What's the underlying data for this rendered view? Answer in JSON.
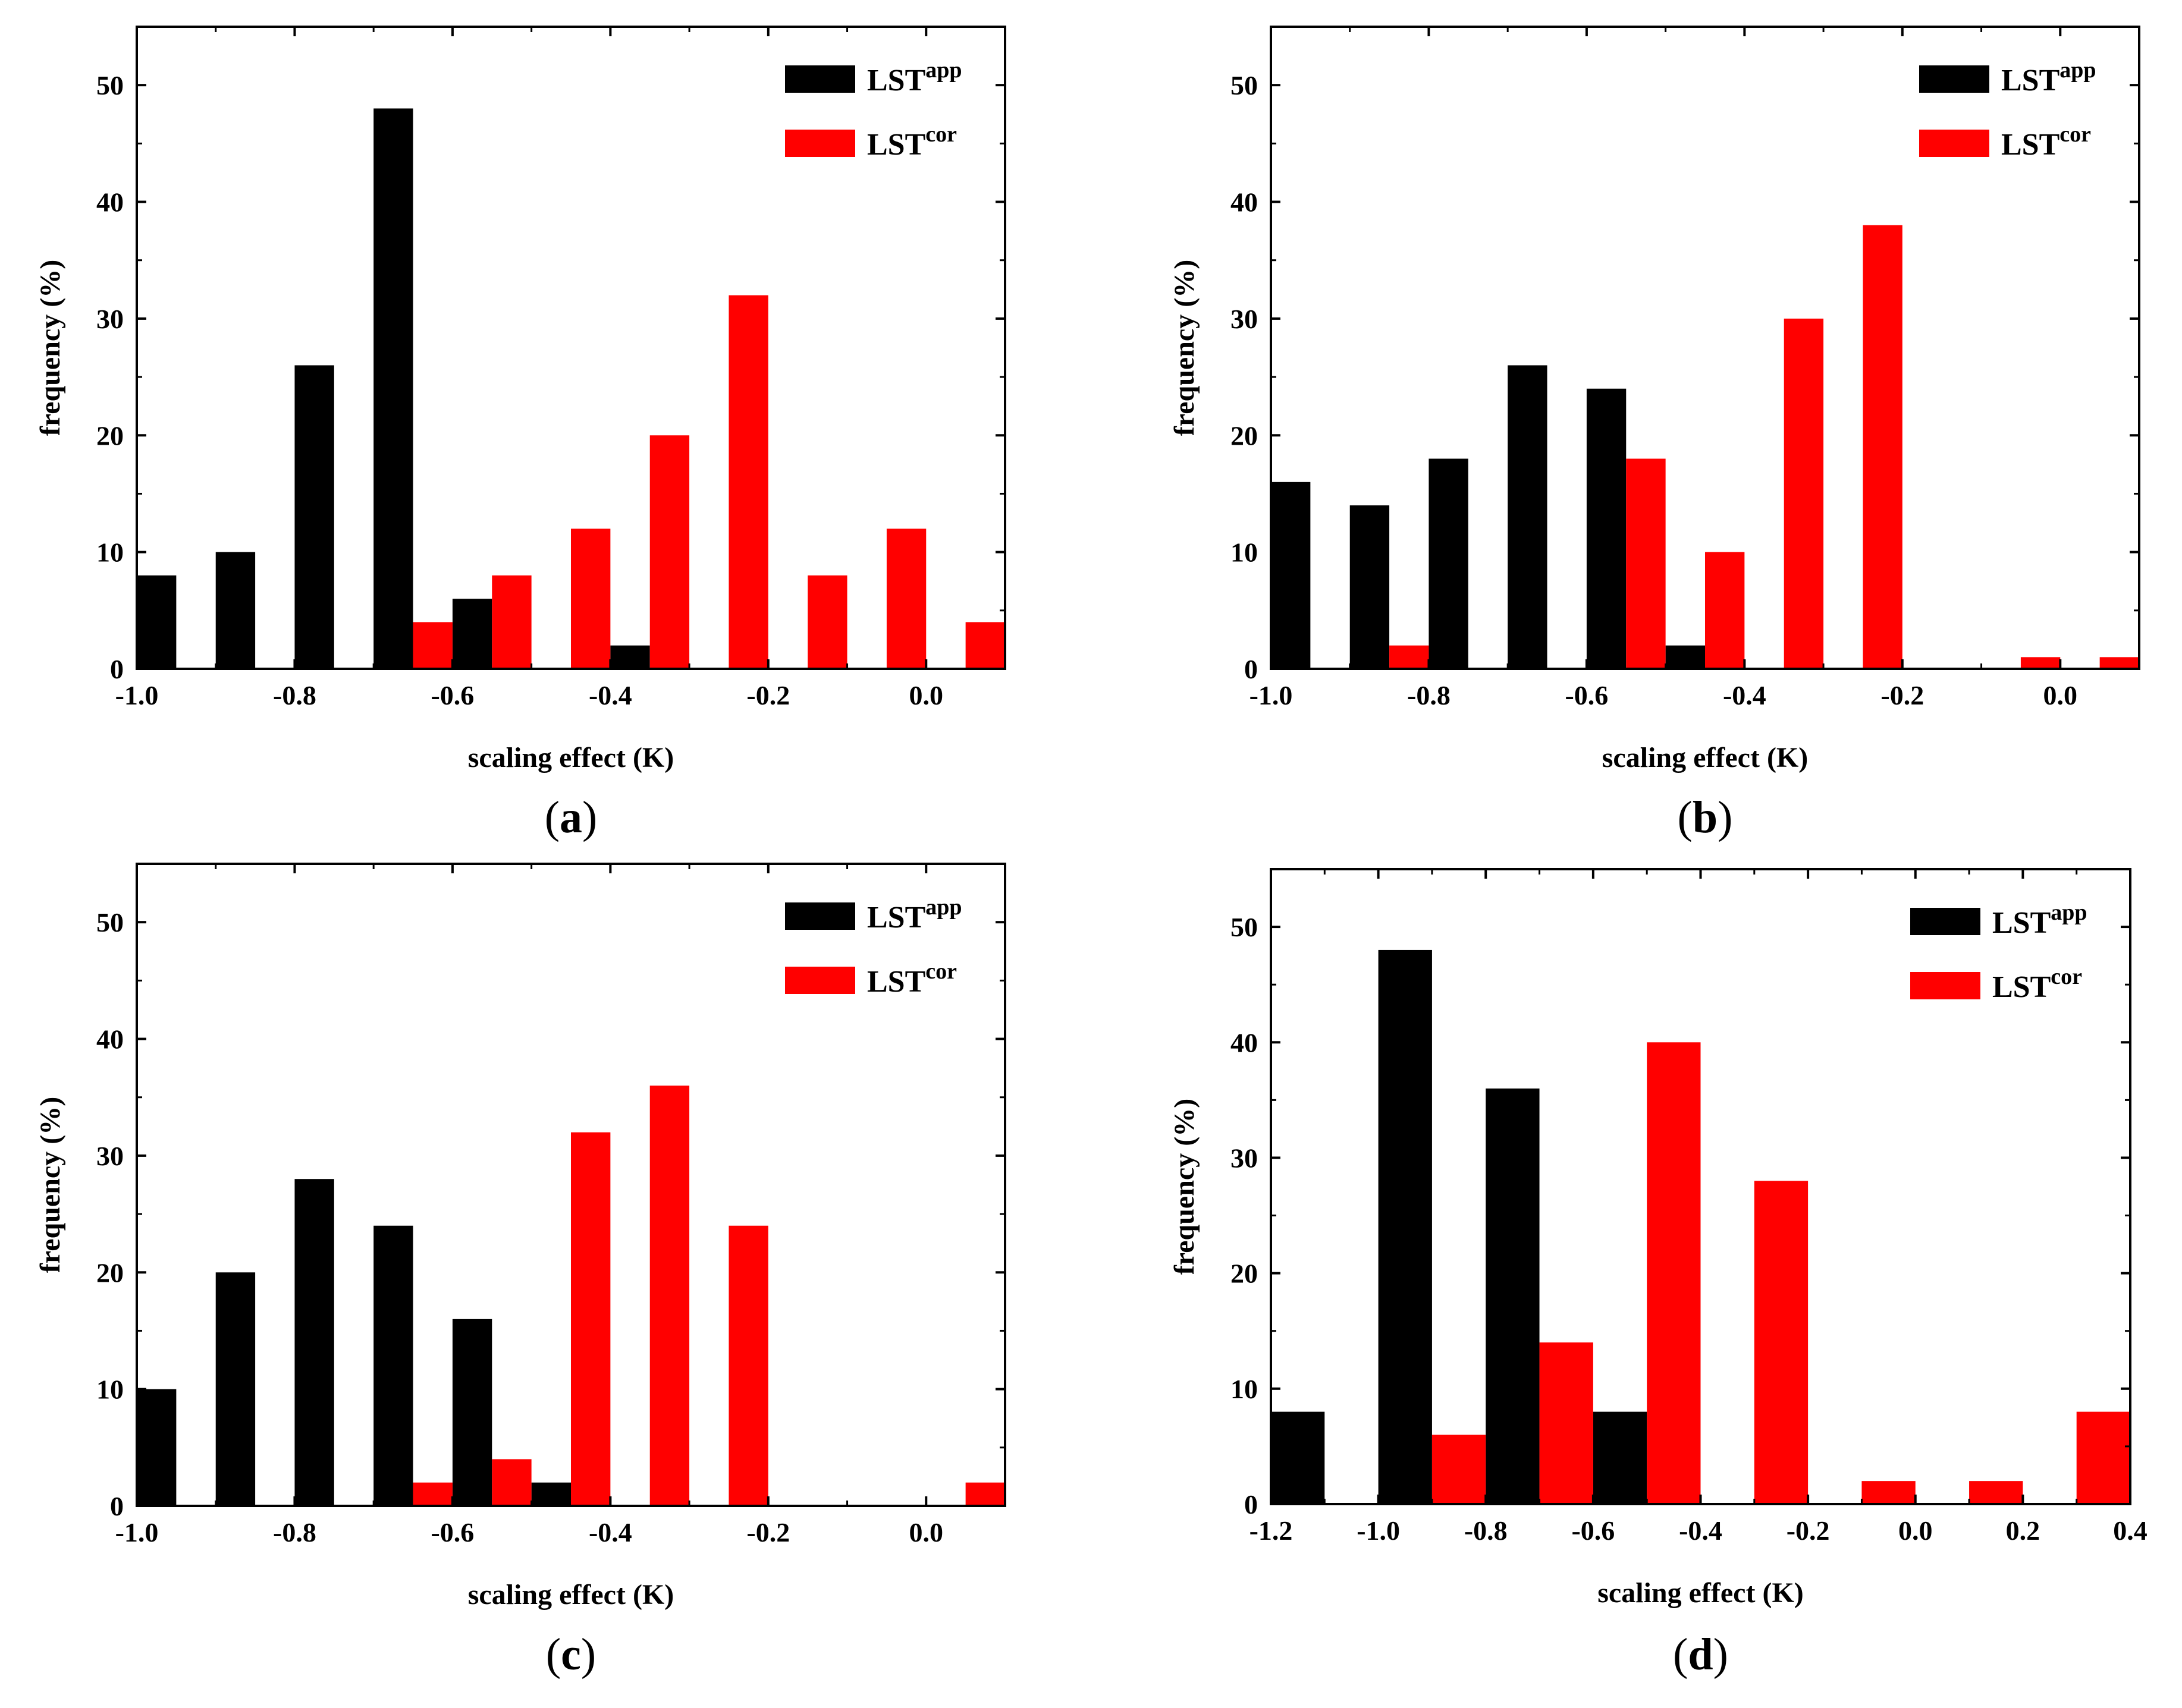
{
  "chart_data": [
    {
      "panel": "(a)",
      "panel_letter": "a",
      "type": "bar",
      "xlabel": "scaling effect (K)",
      "ylabel": "frequency (%)",
      "xlim": [
        -1.0,
        0.1
      ],
      "ylim": [
        0,
        55
      ],
      "bin_width": 0.1,
      "xticks": [
        -1.0,
        -0.8,
        -0.6,
        -0.4,
        -0.2,
        0.0
      ],
      "xtick_labels": [
        "-1.0",
        "-0.8",
        "-0.6",
        "-0.4",
        "-0.2",
        "0.0"
      ],
      "yticks": [
        0,
        10,
        20,
        30,
        40,
        50
      ],
      "ytick_labels": [
        "0",
        "10",
        "20",
        "30",
        "40",
        "50"
      ],
      "legend": {
        "position": "top-right",
        "entries": [
          "app",
          "cor"
        ]
      },
      "series": [
        {
          "name": "LST",
          "superscript": "app",
          "color": "#000000",
          "x": [
            -1.0,
            -0.9,
            -0.8,
            -0.7,
            -0.6,
            -0.4
          ],
          "values": [
            8,
            10,
            26,
            48,
            6,
            2
          ]
        },
        {
          "name": "LST",
          "superscript": "cor",
          "color": "#ff0000",
          "x": [
            -0.6,
            -0.5,
            -0.4,
            -0.3,
            -0.2,
            -0.1,
            0.0,
            0.1
          ],
          "values": [
            4,
            8,
            12,
            20,
            32,
            8,
            12,
            4
          ]
        }
      ]
    },
    {
      "panel": "(b)",
      "panel_letter": "b",
      "type": "bar",
      "xlabel": "scaling effect (K)",
      "ylabel": "frequency (%)",
      "xlim": [
        -1.0,
        0.1
      ],
      "ylim": [
        0,
        55
      ],
      "bin_width": 0.1,
      "xticks": [
        -1.0,
        -0.8,
        -0.6,
        -0.4,
        -0.2,
        0.0
      ],
      "xtick_labels": [
        "-1.0",
        "-0.8",
        "-0.6",
        "-0.4",
        "-0.2",
        "0.0"
      ],
      "yticks": [
        0,
        10,
        20,
        30,
        40,
        50
      ],
      "ytick_labels": [
        "0",
        "10",
        "20",
        "30",
        "40",
        "50"
      ],
      "legend": {
        "position": "top-right",
        "entries": [
          "app",
          "cor"
        ]
      },
      "series": [
        {
          "name": "LST",
          "superscript": "app",
          "color": "#000000",
          "x": [
            -1.0,
            -0.9,
            -0.8,
            -0.7,
            -0.6,
            -0.5
          ],
          "values": [
            16,
            14,
            18,
            26,
            24,
            2
          ]
        },
        {
          "name": "LST",
          "superscript": "cor",
          "color": "#ff0000",
          "x": [
            -0.8,
            -0.5,
            -0.4,
            -0.3,
            -0.2,
            0.0,
            0.1
          ],
          "values": [
            2,
            18,
            10,
            30,
            38,
            1,
            1
          ]
        }
      ]
    },
    {
      "panel": "(c)",
      "panel_letter": "c",
      "type": "bar",
      "xlabel": "scaling effect (K)",
      "ylabel": "frequency (%)",
      "xlim": [
        -1.0,
        0.1
      ],
      "ylim": [
        0,
        55
      ],
      "bin_width": 0.1,
      "xticks": [
        -1.0,
        -0.8,
        -0.6,
        -0.4,
        -0.2,
        0.0
      ],
      "xtick_labels": [
        "-1.0",
        "-0.8",
        "-0.6",
        "-0.4",
        "-0.2",
        "0.0"
      ],
      "yticks": [
        0,
        10,
        20,
        30,
        40,
        50
      ],
      "ytick_labels": [
        "0",
        "10",
        "20",
        "30",
        "40",
        "50"
      ],
      "legend": {
        "position": "top-right",
        "entries": [
          "app",
          "cor"
        ]
      },
      "series": [
        {
          "name": "LST",
          "superscript": "app",
          "color": "#000000",
          "x": [
            -1.0,
            -0.9,
            -0.8,
            -0.7,
            -0.6,
            -0.5
          ],
          "values": [
            10,
            20,
            28,
            24,
            16,
            2
          ]
        },
        {
          "name": "LST",
          "superscript": "cor",
          "color": "#ff0000",
          "x": [
            -0.6,
            -0.5,
            -0.4,
            -0.3,
            -0.2,
            0.1
          ],
          "values": [
            2,
            4,
            32,
            36,
            24,
            2
          ]
        }
      ]
    },
    {
      "panel": "(d)",
      "panel_letter": "d",
      "type": "bar",
      "xlabel": "scaling effect (K)",
      "ylabel": "frequency (%)",
      "xlim": [
        -1.2,
        0.4
      ],
      "ylim": [
        0,
        55
      ],
      "bin_width": 0.2,
      "xticks": [
        -1.2,
        -1.0,
        -0.8,
        -0.6,
        -0.4,
        -0.2,
        0.0,
        0.2,
        0.4
      ],
      "xtick_labels": [
        "-1.2",
        "-1.0",
        "-0.8",
        "-0.6",
        "-0.4",
        "-0.2",
        "0.0",
        "0.2",
        "0.4"
      ],
      "yticks": [
        0,
        10,
        20,
        30,
        40,
        50
      ],
      "ytick_labels": [
        "0",
        "10",
        "20",
        "30",
        "40",
        "50"
      ],
      "legend": {
        "position": "top-right",
        "entries": [
          "app",
          "cor"
        ]
      },
      "series": [
        {
          "name": "LST",
          "superscript": "app",
          "color": "#000000",
          "x": [
            -1.2,
            -1.0,
            -0.8,
            -0.6
          ],
          "values": [
            8,
            48,
            36,
            8
          ]
        },
        {
          "name": "LST",
          "superscript": "cor",
          "color": "#ff0000",
          "x": [
            -0.8,
            -0.6,
            -0.4,
            -0.2,
            0.0,
            0.2,
            0.4
          ],
          "values": [
            6,
            14,
            40,
            28,
            2,
            2,
            8
          ]
        }
      ]
    }
  ]
}
